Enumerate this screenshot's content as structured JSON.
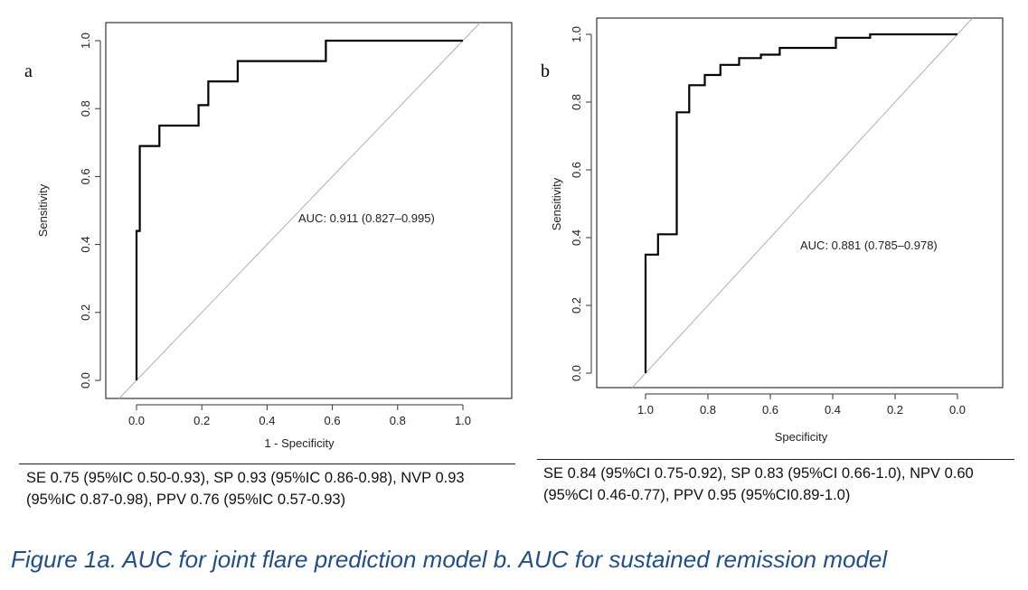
{
  "chart_data": [
    {
      "type": "line",
      "panel_label": "a",
      "xlabel": "1 - Specificity",
      "ylabel": "Sensitivity",
      "xlim": [
        0,
        1
      ],
      "ylim": [
        0,
        1
      ],
      "x_ticks": [
        "0.0",
        "0.2",
        "0.4",
        "0.6",
        "0.8",
        "1.0"
      ],
      "y_ticks": [
        "0.0",
        "0.2",
        "0.4",
        "0.6",
        "0.8",
        "1.0"
      ],
      "annotation": "AUC: 0.911 (0.827–0.995)",
      "reference_line": "diagonal",
      "series": [
        {
          "x": [
            0,
            0,
            0.01,
            0.01,
            0.07,
            0.07,
            0.19,
            0.19,
            0.22,
            0.22,
            0.31,
            0.31,
            0.58,
            0.58,
            1.0
          ],
          "y": [
            0,
            0.44,
            0.44,
            0.69,
            0.69,
            0.75,
            0.75,
            0.81,
            0.81,
            0.88,
            0.88,
            0.94,
            0.94,
            1.0,
            1.0
          ]
        }
      ],
      "stats_text": "SE 0.75 (95%IC 0.50-0.93), SP 0.93 (95%IC 0.86-0.98), NVP 0.93 (95%IC 0.87-0.98), PPV 0.76 (95%IC 0.57-0.93)"
    },
    {
      "type": "line",
      "panel_label": "b",
      "xlabel": "Specificity",
      "ylabel": "Sensitivity",
      "xlim": [
        1,
        0
      ],
      "ylim": [
        0,
        1
      ],
      "x_reversed": true,
      "x_ticks": [
        "1.0",
        "0.8",
        "0.6",
        "0.4",
        "0.2",
        "0.0"
      ],
      "y_ticks": [
        "0.0",
        "0.2",
        "0.4",
        "0.6",
        "0.8",
        "1.0"
      ],
      "annotation": "AUC: 0.881 (0.785–0.978)",
      "reference_line": "diagonal",
      "series": [
        {
          "x": [
            1.0,
            1.0,
            0.96,
            0.96,
            0.9,
            0.9,
            0.86,
            0.86,
            0.81,
            0.81,
            0.76,
            0.76,
            0.7,
            0.7,
            0.63,
            0.63,
            0.57,
            0.57,
            0.39,
            0.39,
            0.28,
            0.28,
            0.0
          ],
          "y": [
            0,
            0.35,
            0.35,
            0.41,
            0.41,
            0.77,
            0.77,
            0.85,
            0.85,
            0.88,
            0.88,
            0.91,
            0.91,
            0.93,
            0.93,
            0.94,
            0.94,
            0.96,
            0.96,
            0.99,
            0.99,
            1.0,
            1.0
          ]
        }
      ],
      "stats_text": "SE 0.84 (95%CI 0.75-0.92), SP 0.83 (95%CI 0.66-1.0), NPV 0.60 (95%CI 0.46-0.77), PPV 0.95 (95%CI0.89-1.0)"
    }
  ],
  "caption": "Figure 1a. AUC for joint flare prediction model b. AUC for sustained remission model",
  "colors": {
    "curve": "#000000",
    "reference_line": "#b0b0b0",
    "axis": "#333333",
    "caption": "#1f4e8c"
  }
}
